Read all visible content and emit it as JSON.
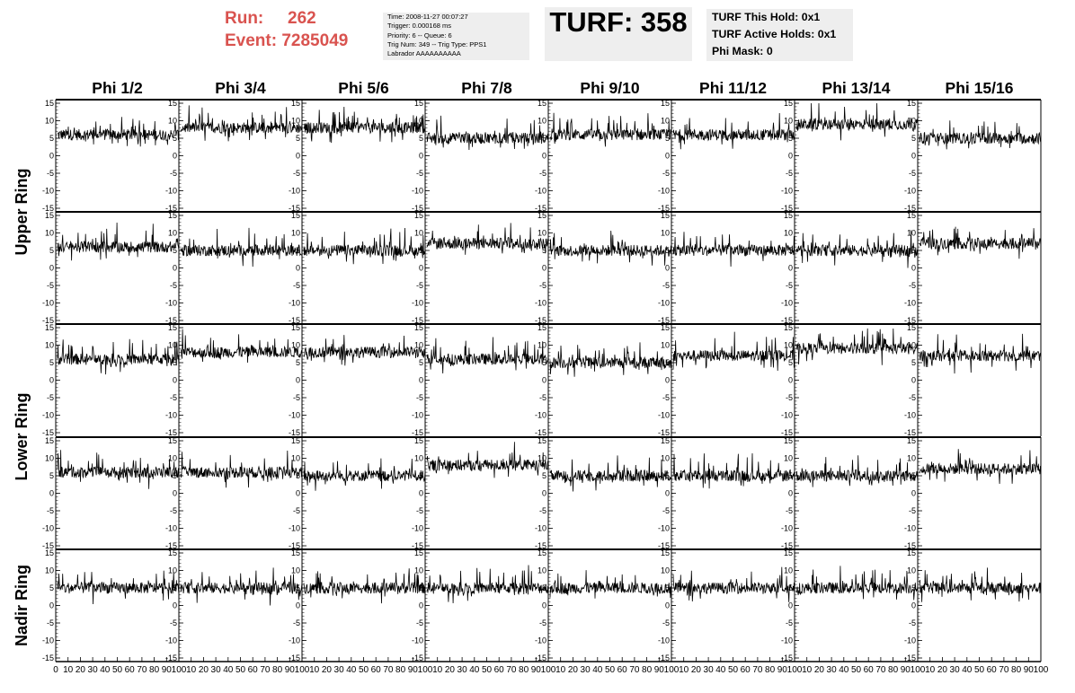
{
  "header": {
    "run_label": "Run:",
    "run_value": "262",
    "event_label": "Event:",
    "event_value": "7285049",
    "info": {
      "time": "Time: 2008-11-27 00:07:27",
      "trigger": "Trigger: 0.000168 ms",
      "priority": "Priority: 6 -- Queue: 6",
      "trig": "Trig Num: 349 -- Trig Type: PPS1",
      "labrador": "Labrador AAAAAAAAAA"
    },
    "turf_title": "TURF: 358",
    "turf_this_hold": "TURF This Hold: 0x1",
    "turf_active_holds": "TURF Active Holds: 0x1",
    "phi_mask": "Phi Mask: 0"
  },
  "colors": {
    "header_text": "#d9534f",
    "panel_bg": "#eeeeee",
    "trace": "#000000"
  },
  "chart_data": {
    "type": "line",
    "columns": [
      "Phi 1/2",
      "Phi 3/4",
      "Phi 5/6",
      "Phi 7/8",
      "Phi 9/10",
      "Phi 11/12",
      "Phi 13/14",
      "Phi 15/16"
    ],
    "ring_labels": [
      "Upper Ring",
      "Lower Ring",
      "Nadir Ring"
    ],
    "rows": 5,
    "row_ring_groups": [
      [
        0,
        1
      ],
      [
        2,
        3
      ],
      [
        4
      ]
    ],
    "xlim": [
      0,
      100
    ],
    "ylim": [
      -15,
      15
    ],
    "x_ticks": [
      0,
      10,
      20,
      30,
      40,
      50,
      60,
      70,
      80,
      90,
      100
    ],
    "y_ticks": [
      -15,
      -10,
      -5,
      0,
      5,
      10,
      15
    ],
    "grid": false,
    "trace_baselines": [
      [
        6,
        8,
        8,
        5,
        6,
        6,
        9,
        5
      ],
      [
        6,
        5,
        5,
        7,
        5,
        5,
        5,
        7
      ],
      [
        6,
        8,
        8,
        6,
        5,
        7,
        9,
        7
      ],
      [
        6,
        6,
        5,
        8,
        5,
        5,
        5,
        7
      ],
      [
        5,
        5,
        5,
        5,
        5,
        5,
        5,
        5
      ]
    ]
  }
}
